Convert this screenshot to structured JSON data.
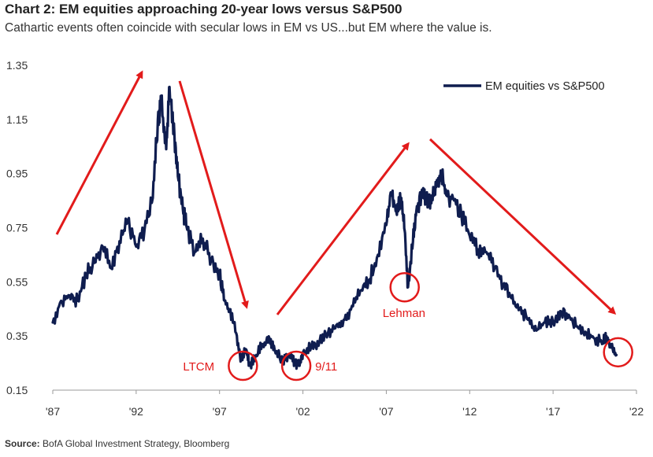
{
  "title": "Chart 2: EM equities approaching 20-year lows versus S&P500",
  "subtitle": "Cathartic events often coincide with secular lows in EM vs US...but EM where the value is.",
  "source": {
    "label": "Source:",
    "text": "BofA Global Investment Strategy, Bloomberg"
  },
  "colors": {
    "series": "#0f1d4f",
    "annotation": "#e21b1b",
    "axis": "#999999"
  },
  "chart_data": {
    "type": "line",
    "xlim": [
      1987,
      2022
    ],
    "ylim": [
      0.15,
      1.35
    ],
    "x_ticks": [
      1987,
      1992,
      1997,
      2002,
      2007,
      2012,
      2017,
      2022
    ],
    "x_tick_labels": [
      "'87",
      "'92",
      "'97",
      "'02",
      "'07",
      "'12",
      "'17",
      "'22"
    ],
    "y_ticks": [
      0.15,
      0.35,
      0.55,
      0.75,
      0.95,
      1.15,
      1.35
    ],
    "y_tick_labels": [
      "0.15",
      "0.35",
      "0.55",
      "0.75",
      "0.95",
      "1.15",
      "1.35"
    ],
    "grid": false,
    "legend_position": "top-right",
    "series": [
      {
        "name": "EM equities vs S&P500",
        "x": [
          1987.0,
          1987.5,
          1988.0,
          1988.5,
          1989.0,
          1989.5,
          1990.0,
          1990.5,
          1991.0,
          1991.5,
          1992.0,
          1992.5,
          1993.0,
          1993.3,
          1993.5,
          1993.8,
          1994.0,
          1994.3,
          1994.5,
          1994.8,
          1995.0,
          1995.5,
          1996.0,
          1996.5,
          1997.0,
          1997.3,
          1997.6,
          1998.0,
          1998.3,
          1998.6,
          1998.8,
          1999.2,
          1999.6,
          2000.0,
          2000.3,
          2000.8,
          2001.2,
          2001.5,
          2001.8,
          2002.0,
          2002.5,
          2003.0,
          2003.5,
          2004.0,
          2004.5,
          2005.0,
          2005.5,
          2006.0,
          2006.5,
          2007.0,
          2007.3,
          2007.6,
          2007.9,
          2008.1,
          2008.3,
          2008.6,
          2008.8,
          2009.1,
          2009.4,
          2009.7,
          2010.0,
          2010.3,
          2010.6,
          2011.0,
          2011.5,
          2012.0,
          2012.5,
          2013.0,
          2013.5,
          2014.0,
          2014.5,
          2015.0,
          2015.5,
          2016.0,
          2016.5,
          2017.0,
          2017.5,
          2018.0,
          2018.5,
          2019.0,
          2019.5,
          2020.0,
          2020.2,
          2020.5,
          2020.8
        ],
        "y": [
          0.4,
          0.48,
          0.5,
          0.48,
          0.58,
          0.62,
          0.68,
          0.6,
          0.7,
          0.78,
          0.68,
          0.74,
          0.86,
          1.15,
          1.22,
          1.04,
          1.27,
          1.08,
          0.94,
          0.82,
          0.76,
          0.66,
          0.71,
          0.63,
          0.58,
          0.48,
          0.44,
          0.36,
          0.26,
          0.3,
          0.24,
          0.28,
          0.32,
          0.34,
          0.3,
          0.26,
          0.28,
          0.25,
          0.24,
          0.29,
          0.31,
          0.33,
          0.36,
          0.39,
          0.41,
          0.46,
          0.52,
          0.56,
          0.65,
          0.76,
          0.88,
          0.81,
          0.86,
          0.74,
          0.53,
          0.7,
          0.81,
          0.88,
          0.86,
          0.84,
          0.9,
          0.95,
          0.87,
          0.86,
          0.8,
          0.72,
          0.67,
          0.66,
          0.6,
          0.54,
          0.49,
          0.45,
          0.41,
          0.37,
          0.4,
          0.4,
          0.44,
          0.42,
          0.38,
          0.36,
          0.34,
          0.33,
          0.35,
          0.31,
          0.28
        ]
      }
    ],
    "annotations": [
      {
        "label": "LTCM",
        "x": 1998.4,
        "y": 0.24
      },
      {
        "label": "9/11",
        "x": 2001.6,
        "y": 0.24
      },
      {
        "label": "Lehman",
        "x": 2008.1,
        "y": 0.53
      },
      {
        "label": "",
        "x": 2020.9,
        "y": 0.29
      }
    ]
  }
}
